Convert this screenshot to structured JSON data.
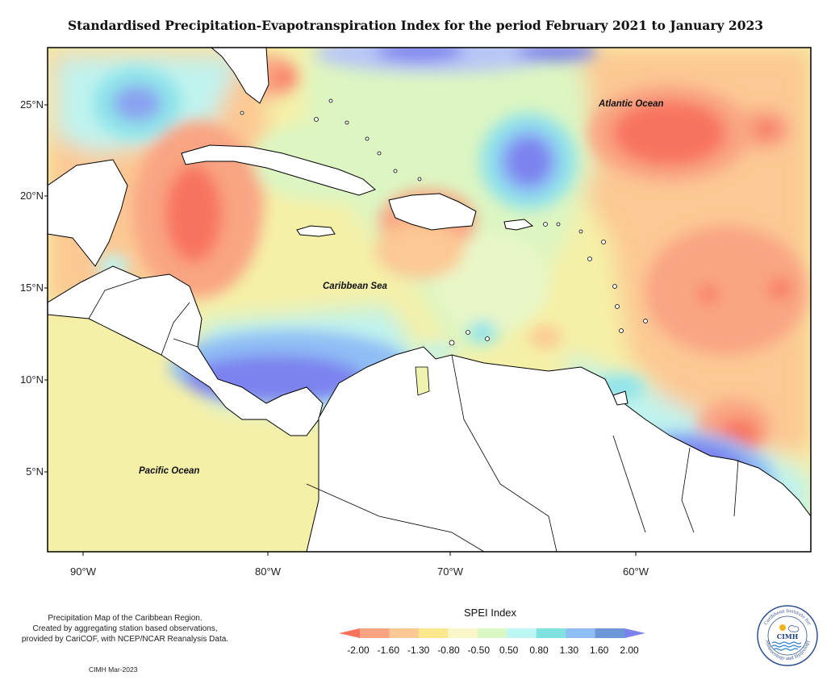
{
  "title": "Standardised Precipitation-Evapotranspiration Index for the period February 2021 to January 2023",
  "map": {
    "latitude_ticks": [
      "25°N",
      "20°N",
      "15°N",
      "10°N",
      "5°N"
    ],
    "longitude_ticks": [
      "90°W",
      "80°W",
      "70°W",
      "60°W"
    ],
    "ocean_labels": {
      "atlantic": "Atlantic Ocean",
      "caribbean": "Caribbean Sea",
      "pacific": "Pacific Ocean"
    }
  },
  "legend": {
    "title": "SPEI Index",
    "ticks": [
      "-2.00",
      "-1.60",
      "-1.30",
      "-0.80",
      "-0.50",
      "0.50",
      "0.80",
      "1.30",
      "1.60",
      "2.00"
    ],
    "colors": [
      "#f8735f",
      "#f9a483",
      "#fcc893",
      "#fbe88c",
      "#f9f6c9",
      "#d9f8c6",
      "#bef6f3",
      "#7fe2df",
      "#8fbdf5",
      "#6d98d7",
      "#7b82ee"
    ]
  },
  "notes": {
    "lines": [
      "Precipitation Map of the Caribbean Region.",
      "Created by aggregating station based observations,",
      "provided by CariCOF, with NCEP/NCAR Reanalysis Data."
    ],
    "credit": "CIMH Mar-2023"
  },
  "logo": {
    "name": "CIMH",
    "ring_text_top": "Caribbean Institute for",
    "ring_text_bottom": "Meteorology and Hydrology"
  }
}
